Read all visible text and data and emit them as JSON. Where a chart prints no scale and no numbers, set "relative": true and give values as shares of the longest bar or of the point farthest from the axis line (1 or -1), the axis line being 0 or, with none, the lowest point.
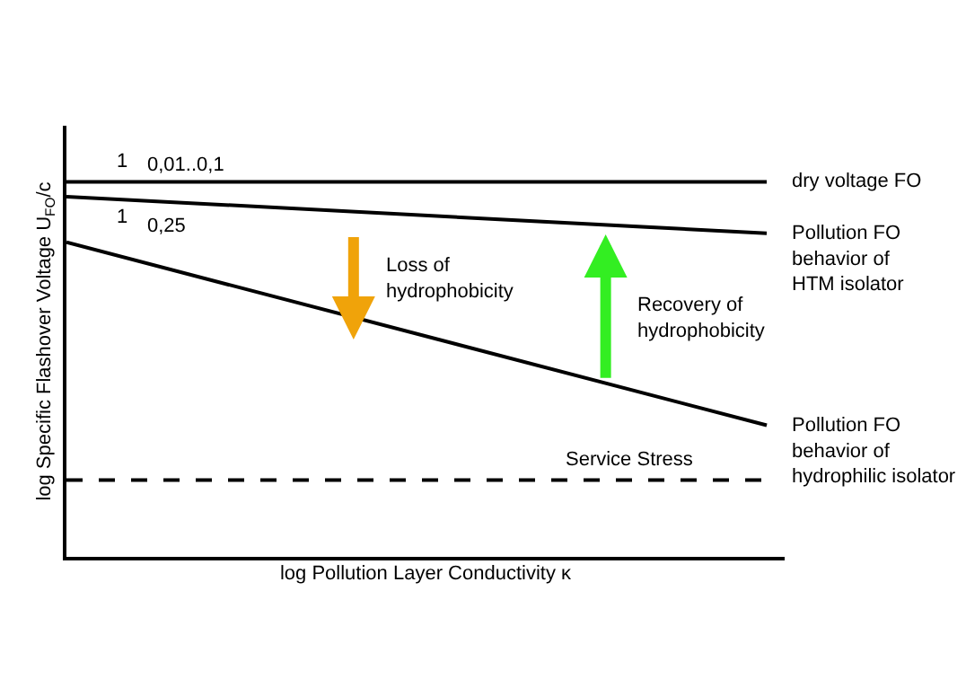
{
  "chart_data": {
    "type": "line",
    "relative": true,
    "categories": [
      null,
      null
    ],
    "xlabel": "log Pollution Layer Conductivity κ",
    "ylabel": "log Specific Flashover Voltage U$_{FO}$/c",
    "series": [
      {
        "name": "dry voltage FO",
        "color": "#000000",
        "values": [
          1,
          1
        ]
      },
      {
        "name": "Pollution FO\nbehavior of\nHTM isolator",
        "color": "#000000",
        "values": [
          0.961,
          0.863
        ]
      },
      {
        "name": "Pollution FO\nbehavior of\nhydrophilic isolator",
        "color": "#000000",
        "values": [
          0.839,
          0.351
        ]
      }
    ],
    "ref_lines": [
      {
        "axis": "y",
        "value": 0.205,
        "label": "Service Stress",
        "color": "#000000",
        "line_style": "dashed"
      }
    ],
    "annotations": [
      "1",
      "0,01..0,1",
      "1",
      "0,25",
      "Loss of\nhydrophobicity",
      "Recovery of\nhydrophobicity"
    ],
    "legend": false,
    "marker": "none",
    "line_style": "solid",
    "tick_labels": false
  }
}
